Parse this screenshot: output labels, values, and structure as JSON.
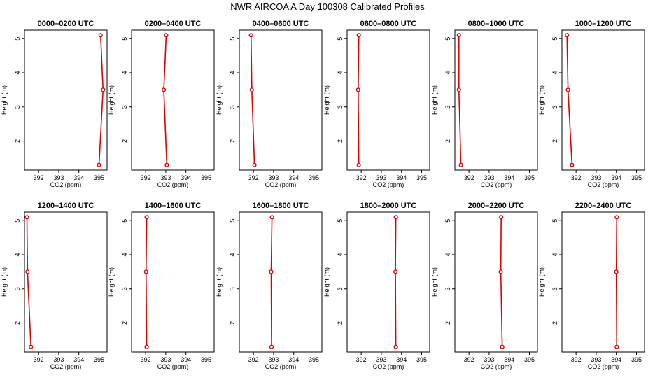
{
  "figure": {
    "title": "NWR AIRCOA A  Day 100308  Calibrated Profiles"
  },
  "colors": {
    "series": "#dd0000",
    "axis": "#000000"
  },
  "chart_data": [
    {
      "type": "line",
      "title": "0000–0200 UTC",
      "xlabel": "CO2 (ppm)",
      "ylabel": "Height (m)",
      "xlim": [
        391.3,
        395.4
      ],
      "ylim": [
        1.15,
        5.25
      ],
      "xticks": [
        392,
        393,
        394,
        395
      ],
      "yticks": [
        2,
        3,
        4,
        5
      ],
      "series": [
        {
          "x": [
            395.0,
            395.2,
            395.08
          ],
          "y": [
            1.3,
            3.5,
            5.1
          ]
        }
      ]
    },
    {
      "type": "line",
      "title": "0200–0400 UTC",
      "xlabel": "CO2 (ppm)",
      "ylabel": "Height (m)",
      "xlim": [
        391.3,
        395.4
      ],
      "ylim": [
        1.15,
        5.25
      ],
      "xticks": [
        392,
        393,
        394,
        395
      ],
      "yticks": [
        2,
        3,
        4,
        5
      ],
      "series": [
        {
          "x": [
            393.05,
            392.9,
            393.02
          ],
          "y": [
            1.3,
            3.5,
            5.1
          ]
        }
      ]
    },
    {
      "type": "line",
      "title": "0400–0600 UTC",
      "xlabel": "CO2 (ppm)",
      "ylabel": "Height (m)",
      "xlim": [
        391.3,
        395.4
      ],
      "ylim": [
        1.15,
        5.25
      ],
      "xticks": [
        392,
        393,
        394,
        395
      ],
      "yticks": [
        2,
        3,
        4,
        5
      ],
      "series": [
        {
          "x": [
            392.05,
            391.92,
            391.88
          ],
          "y": [
            1.3,
            3.5,
            5.1
          ]
        }
      ]
    },
    {
      "type": "line",
      "title": "0600–0800 UTC",
      "xlabel": "CO2 (ppm)",
      "ylabel": "Height (m)",
      "xlim": [
        391.3,
        395.4
      ],
      "ylim": [
        1.15,
        5.25
      ],
      "xticks": [
        392,
        393,
        394,
        395
      ],
      "yticks": [
        2,
        3,
        4,
        5
      ],
      "series": [
        {
          "x": [
            391.88,
            391.85,
            391.88
          ],
          "y": [
            1.3,
            3.5,
            5.1
          ]
        }
      ]
    },
    {
      "type": "line",
      "title": "0800–1000 UTC",
      "xlabel": "CO2 (ppm)",
      "ylabel": "Height (m)",
      "xlim": [
        391.3,
        395.4
      ],
      "ylim": [
        1.15,
        5.25
      ],
      "xticks": [
        392,
        393,
        394,
        395
      ],
      "yticks": [
        2,
        3,
        4,
        5
      ],
      "series": [
        {
          "x": [
            391.6,
            391.5,
            391.5
          ],
          "y": [
            1.3,
            3.5,
            5.1
          ]
        }
      ]
    },
    {
      "type": "line",
      "title": "1000–1200 UTC",
      "xlabel": "CO2 (ppm)",
      "ylabel": "Height (m)",
      "xlim": [
        391.3,
        395.4
      ],
      "ylim": [
        1.15,
        5.25
      ],
      "xticks": [
        392,
        393,
        394,
        395
      ],
      "yticks": [
        2,
        3,
        4,
        5
      ],
      "series": [
        {
          "x": [
            391.8,
            391.6,
            391.55
          ],
          "y": [
            1.3,
            3.5,
            5.1
          ]
        }
      ]
    },
    {
      "type": "line",
      "title": "1200–1400 UTC",
      "xlabel": "CO2 (ppm)",
      "ylabel": "Height (m)",
      "xlim": [
        391.3,
        395.4
      ],
      "ylim": [
        1.15,
        5.25
      ],
      "xticks": [
        392,
        393,
        394,
        395
      ],
      "yticks": [
        2,
        3,
        4,
        5
      ],
      "series": [
        {
          "x": [
            391.62,
            391.45,
            391.42
          ],
          "y": [
            1.3,
            3.5,
            5.1
          ]
        }
      ]
    },
    {
      "type": "line",
      "title": "1400–1600 UTC",
      "xlabel": "CO2 (ppm)",
      "ylabel": "Height (m)",
      "xlim": [
        391.3,
        395.4
      ],
      "ylim": [
        1.15,
        5.25
      ],
      "xticks": [
        392,
        393,
        394,
        395
      ],
      "yticks": [
        2,
        3,
        4,
        5
      ],
      "series": [
        {
          "x": [
            392.05,
            392.02,
            392.05
          ],
          "y": [
            1.3,
            3.5,
            5.1
          ]
        }
      ]
    },
    {
      "type": "line",
      "title": "1600–1800 UTC",
      "xlabel": "CO2 (ppm)",
      "ylabel": "Height (m)",
      "xlim": [
        391.3,
        395.4
      ],
      "ylim": [
        1.15,
        5.25
      ],
      "xticks": [
        392,
        393,
        394,
        395
      ],
      "yticks": [
        2,
        3,
        4,
        5
      ],
      "series": [
        {
          "x": [
            392.9,
            392.88,
            392.92
          ],
          "y": [
            1.3,
            3.5,
            5.1
          ]
        }
      ]
    },
    {
      "type": "line",
      "title": "1800–2000 UTC",
      "xlabel": "CO2 (ppm)",
      "ylabel": "Height (m)",
      "xlim": [
        391.3,
        395.4
      ],
      "ylim": [
        1.15,
        5.25
      ],
      "xticks": [
        392,
        393,
        394,
        395
      ],
      "yticks": [
        2,
        3,
        4,
        5
      ],
      "series": [
        {
          "x": [
            393.72,
            393.7,
            393.72
          ],
          "y": [
            1.3,
            3.5,
            5.1
          ]
        }
      ]
    },
    {
      "type": "line",
      "title": "2000–2200 UTC",
      "xlabel": "CO2 (ppm)",
      "ylabel": "Height (m)",
      "xlim": [
        391.3,
        395.4
      ],
      "ylim": [
        1.15,
        5.25
      ],
      "xticks": [
        392,
        393,
        394,
        395
      ],
      "yticks": [
        2,
        3,
        4,
        5
      ],
      "series": [
        {
          "x": [
            393.65,
            393.58,
            393.6
          ],
          "y": [
            1.3,
            3.5,
            5.1
          ]
        }
      ]
    },
    {
      "type": "line",
      "title": "2200–2400 UTC",
      "xlabel": "CO2 (ppm)",
      "ylabel": "Height (m)",
      "xlim": [
        391.3,
        395.4
      ],
      "ylim": [
        1.15,
        5.25
      ],
      "xticks": [
        392,
        393,
        394,
        395
      ],
      "yticks": [
        2,
        3,
        4,
        5
      ],
      "series": [
        {
          "x": [
            394.02,
            394.0,
            394.02
          ],
          "y": [
            1.3,
            3.5,
            5.1
          ]
        }
      ]
    }
  ]
}
